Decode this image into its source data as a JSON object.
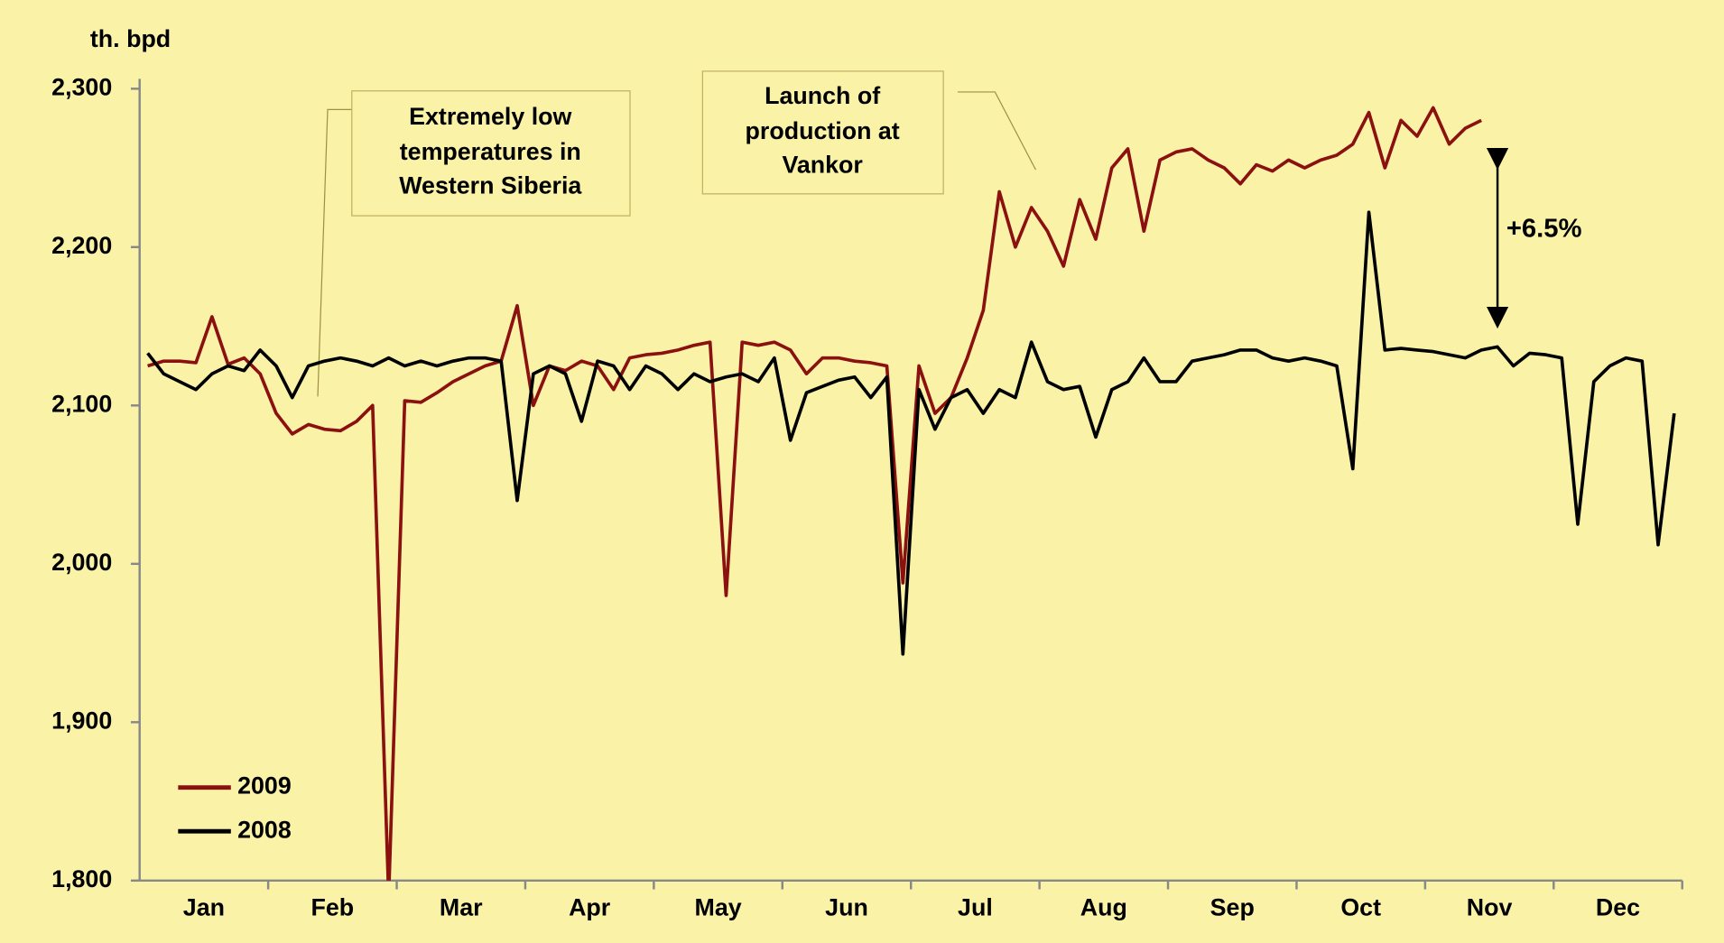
{
  "chart_data": {
    "type": "line",
    "y_label": "th. bpd",
    "categories": [
      "Jan",
      "Feb",
      "Mar",
      "Apr",
      "May",
      "Jun",
      "Jul",
      "Aug",
      "Sep",
      "Oct",
      "Nov",
      "Dec"
    ],
    "series": [
      {
        "name": "2009",
        "color": "#8b1010",
        "values": [
          [
            2125,
            2128,
            2128,
            2127,
            2156,
            2126,
            2130,
            2120
          ],
          [
            2095,
            2082,
            2088,
            2085,
            2084,
            2090,
            2100,
            1790
          ],
          [
            2103,
            2102,
            2108,
            2115,
            2120,
            2125,
            2128,
            2163
          ],
          [
            2100,
            2125,
            2122,
            2128,
            2125,
            2110,
            2130,
            2132
          ],
          [
            2133,
            2135,
            2138,
            2140,
            1980,
            2140,
            2138,
            2140
          ],
          [
            2135,
            2120,
            2130,
            2130,
            2128,
            2127,
            2125,
            1988
          ],
          [
            2125,
            2095,
            2105,
            2130,
            2160,
            2235,
            2200,
            2225
          ],
          [
            2210,
            2188,
            2230,
            2205,
            2250,
            2262,
            2210,
            2255
          ],
          [
            2260,
            2262,
            2255,
            2250,
            2240,
            2252,
            2248,
            2255
          ],
          [
            2250,
            2255,
            2258,
            2265,
            2285,
            2250,
            2280,
            2270
          ],
          [
            2288,
            2265,
            2275,
            2280,
            null,
            null,
            null,
            null
          ],
          [
            null,
            null,
            null,
            null,
            null,
            null,
            null,
            null
          ]
        ]
      },
      {
        "name": "2008",
        "color": "#000000",
        "values": [
          [
            2133,
            2120,
            2115,
            2110,
            2120,
            2125,
            2122,
            2135
          ],
          [
            2125,
            2105,
            2125,
            2128,
            2130,
            2128,
            2125,
            2130
          ],
          [
            2125,
            2128,
            2125,
            2128,
            2130,
            2130,
            2128,
            2040
          ],
          [
            2120,
            2125,
            2120,
            2090,
            2128,
            2125,
            2110,
            2125
          ],
          [
            2120,
            2110,
            2120,
            2115,
            2118,
            2120,
            2115,
            2130
          ],
          [
            2078,
            2108,
            2112,
            2116,
            2118,
            2105,
            2118,
            1943
          ],
          [
            2110,
            2085,
            2105,
            2110,
            2095,
            2110,
            2105,
            2140
          ],
          [
            2115,
            2110,
            2112,
            2080,
            2110,
            2115,
            2130,
            2115
          ],
          [
            2115,
            2128,
            2130,
            2132,
            2135,
            2135,
            2130,
            2128
          ],
          [
            2130,
            2128,
            2125,
            2060,
            2222,
            2135,
            2136,
            2135
          ],
          [
            2134,
            2132,
            2130,
            2135,
            2137,
            2125,
            2133,
            2132
          ],
          [
            2130,
            2025,
            2115,
            2125,
            2130,
            2128,
            2012,
            2095
          ]
        ]
      }
    ],
    "ylim": [
      1800,
      2300
    ],
    "yticks": [
      {
        "value": 1800,
        "label": "1,800"
      },
      {
        "value": 1900,
        "label": "1,900"
      },
      {
        "value": 2000,
        "label": "2,000"
      },
      {
        "value": 2100,
        "label": "2,100"
      },
      {
        "value": 2200,
        "label": "2,200"
      },
      {
        "value": 2300,
        "label": "2,300"
      }
    ],
    "grid": false,
    "legend": "lower left",
    "annotations": [
      {
        "lines": [
          "Extremely low",
          "temperatures in",
          "Western Siberia"
        ]
      },
      {
        "lines": [
          "Launch of",
          "production at",
          "Vankor"
        ]
      },
      {
        "text": "+6.5%"
      }
    ]
  }
}
